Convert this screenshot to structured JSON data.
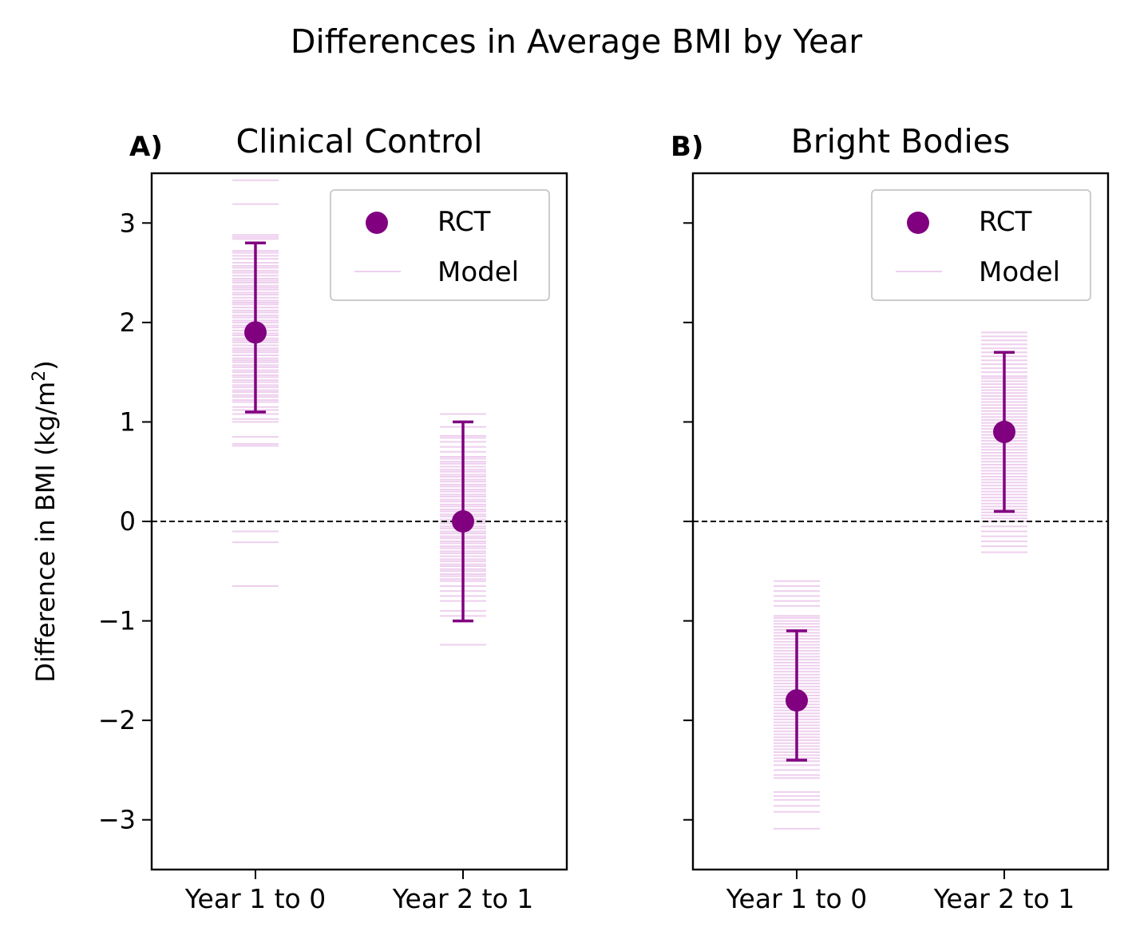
{
  "figure": {
    "suptitle": "Differences in Average BMI by Year"
  },
  "chart_data": [
    {
      "type": "scatter",
      "panel_label": "A)",
      "title": "Clinical Control",
      "ylabel_main": "Difference in BMI (kg/m",
      "ylabel_sup": "2",
      "ylabel_close": ")",
      "categories": [
        "Year 1 to 0",
        "Year 2 to 1"
      ],
      "ylim": [
        -3.5,
        3.5
      ],
      "yticks": [
        -3,
        -2,
        -1,
        0,
        1,
        2,
        3
      ],
      "ytick_labels": [
        "−3",
        "−2",
        "−1",
        "0",
        "1",
        "2",
        "3"
      ],
      "reference_line": 0,
      "legend": {
        "location": "upper right",
        "entries": [
          "RCT",
          "Model"
        ]
      },
      "series": [
        {
          "name": "RCT",
          "color": "#800080",
          "points": [
            {
              "category": "Year 1 to 0",
              "value": 1.9,
              "lower": 1.1,
              "upper": 2.8
            },
            {
              "category": "Year 2 to 1",
              "value": 0.0,
              "lower": -1.0,
              "upper": 1.0
            }
          ]
        },
        {
          "name": "Model",
          "color": "#dda0dd",
          "draws": [
            {
              "category": "Year 1 to 0",
              "values": [
                3.43,
                3.19,
                2.88,
                2.86,
                2.84,
                2.72,
                2.7,
                2.67,
                2.64,
                2.6,
                2.57,
                2.55,
                2.52,
                2.5,
                2.47,
                2.44,
                2.42,
                2.4,
                2.37,
                2.35,
                2.33,
                2.3,
                2.28,
                2.25,
                2.22,
                2.2,
                2.18,
                2.15,
                2.12,
                2.1,
                2.07,
                2.05,
                2.02,
                2.0,
                1.97,
                1.95,
                1.92,
                1.89,
                1.87,
                1.84,
                1.82,
                1.8,
                1.77,
                1.74,
                1.72,
                1.7,
                1.67,
                1.64,
                1.62,
                1.6,
                1.57,
                1.55,
                1.52,
                1.5,
                1.47,
                1.45,
                1.42,
                1.4,
                1.37,
                1.35,
                1.32,
                1.3,
                1.27,
                1.25,
                1.22,
                1.2,
                1.15,
                1.12,
                1.08,
                1.03,
                1.0,
                0.85,
                0.78,
                0.76,
                -0.1,
                -0.21,
                -0.65
              ]
            },
            {
              "category": "Year 2 to 1",
              "values": [
                1.08,
                0.95,
                0.86,
                0.84,
                0.8,
                0.75,
                0.7,
                0.65,
                0.63,
                0.6,
                0.58,
                0.55,
                0.52,
                0.5,
                0.47,
                0.45,
                0.42,
                0.4,
                0.37,
                0.35,
                0.32,
                0.3,
                0.27,
                0.25,
                0.22,
                0.2,
                0.17,
                0.15,
                0.12,
                0.1,
                0.07,
                0.05,
                0.02,
                0.0,
                -0.02,
                -0.05,
                -0.07,
                -0.1,
                -0.12,
                -0.15,
                -0.17,
                -0.2,
                -0.22,
                -0.25,
                -0.27,
                -0.3,
                -0.32,
                -0.35,
                -0.38,
                -0.4,
                -0.43,
                -0.45,
                -0.48,
                -0.5,
                -0.53,
                -0.55,
                -0.58,
                -0.6,
                -0.65,
                -0.7,
                -0.75,
                -0.8,
                -0.9,
                -0.95,
                -1.24
              ]
            }
          ]
        }
      ]
    },
    {
      "type": "scatter",
      "panel_label": "B)",
      "title": "Bright Bodies",
      "categories": [
        "Year 1 to 0",
        "Year 2 to 1"
      ],
      "ylim": [
        -3.5,
        3.5
      ],
      "yticks": [
        -3,
        -2,
        -1,
        0,
        1,
        2,
        3
      ],
      "reference_line": 0,
      "legend": {
        "location": "upper right",
        "entries": [
          "RCT",
          "Model"
        ]
      },
      "series": [
        {
          "name": "RCT",
          "color": "#800080",
          "points": [
            {
              "category": "Year 1 to 0",
              "value": -1.8,
              "lower": -2.4,
              "upper": -1.1
            },
            {
              "category": "Year 2 to 1",
              "value": 0.9,
              "lower": 0.1,
              "upper": 1.7
            }
          ]
        },
        {
          "name": "Model",
          "color": "#dda0dd",
          "draws": [
            {
              "category": "Year 1 to 0",
              "values": [
                -0.6,
                -0.65,
                -0.7,
                -0.75,
                -0.8,
                -0.85,
                -0.95,
                -0.97,
                -1.0,
                -1.03,
                -1.06,
                -1.09,
                -1.12,
                -1.15,
                -1.18,
                -1.21,
                -1.24,
                -1.27,
                -1.3,
                -1.33,
                -1.36,
                -1.39,
                -1.42,
                -1.45,
                -1.48,
                -1.51,
                -1.54,
                -1.57,
                -1.6,
                -1.63,
                -1.66,
                -1.69,
                -1.72,
                -1.75,
                -1.78,
                -1.81,
                -1.84,
                -1.87,
                -1.9,
                -1.93,
                -1.96,
                -1.99,
                -2.02,
                -2.05,
                -2.08,
                -2.11,
                -2.14,
                -2.17,
                -2.2,
                -2.23,
                -2.26,
                -2.29,
                -2.32,
                -2.35,
                -2.38,
                -2.41,
                -2.45,
                -2.5,
                -2.55,
                -2.58,
                -2.72,
                -2.76,
                -2.8,
                -2.86,
                -2.92,
                -3.09
              ]
            },
            {
              "category": "Year 2 to 1",
              "values": [
                1.9,
                1.86,
                1.82,
                1.78,
                1.74,
                1.7,
                1.66,
                1.62,
                1.58,
                1.54,
                1.5,
                1.46,
                1.44,
                1.41,
                1.38,
                1.35,
                1.32,
                1.29,
                1.26,
                1.23,
                1.2,
                1.17,
                1.14,
                1.11,
                1.08,
                1.05,
                1.02,
                0.99,
                0.96,
                0.93,
                0.9,
                0.87,
                0.84,
                0.81,
                0.78,
                0.75,
                0.72,
                0.69,
                0.66,
                0.63,
                0.6,
                0.57,
                0.54,
                0.51,
                0.48,
                0.45,
                0.42,
                0.39,
                0.36,
                0.33,
                0.3,
                0.27,
                0.24,
                0.21,
                0.18,
                0.15,
                0.12,
                0.09,
                0.06,
                0.03,
                0.0,
                -0.05,
                -0.1,
                -0.15,
                -0.2,
                -0.25,
                -0.31
              ]
            }
          ]
        }
      ]
    }
  ]
}
